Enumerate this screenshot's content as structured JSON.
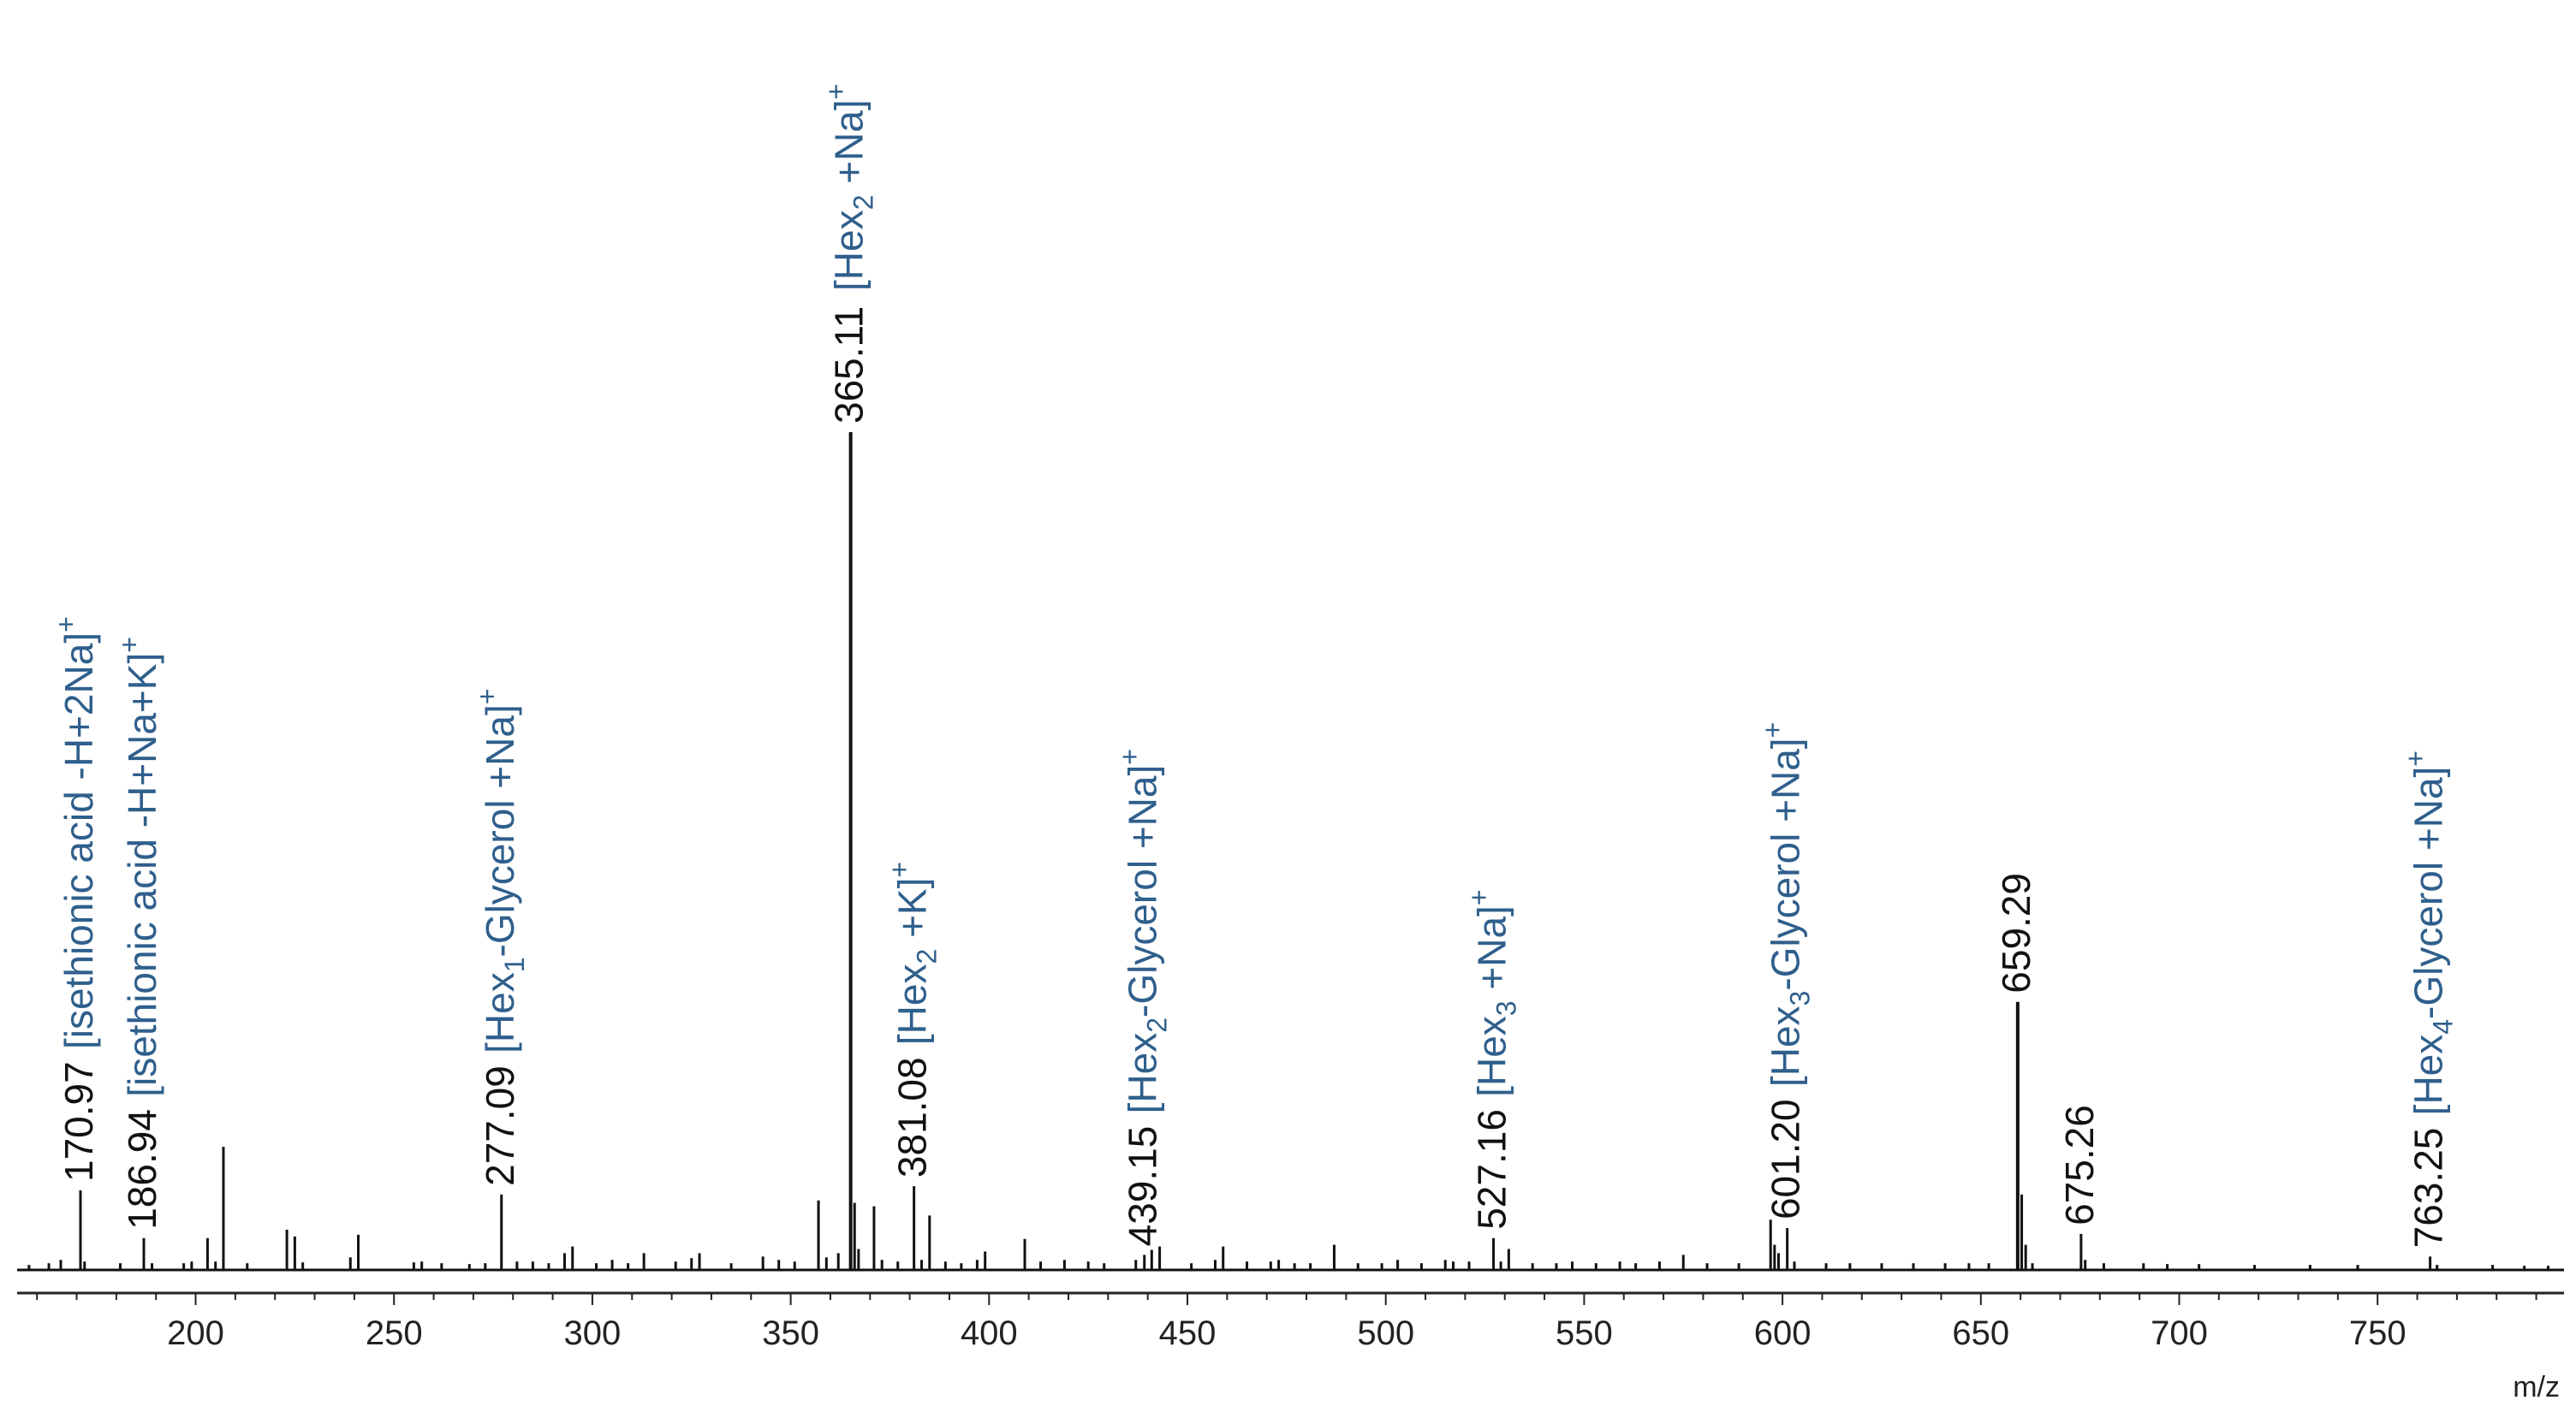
{
  "chart_data": {
    "type": "line",
    "subtype": "mass-spectrum-stick",
    "xlabel": "m/z",
    "ylabel": "",
    "xlim": [
      155,
      797
    ],
    "ylim": [
      0,
      100
    ],
    "grid": false,
    "legend": "none",
    "colors": {
      "spectrum": "#111111",
      "annotation": "#2f5f8c",
      "labels": "#111111"
    },
    "x_ticks": [
      200,
      250,
      300,
      350,
      400,
      450,
      500,
      550,
      600,
      650,
      700,
      750
    ],
    "peaks": [
      {
        "mz": 158.0,
        "intensity": 0.6
      },
      {
        "mz": 163.0,
        "intensity": 0.8
      },
      {
        "mz": 166.0,
        "intensity": 1.2
      },
      {
        "mz": 170.97,
        "intensity": 9.5
      },
      {
        "mz": 172.0,
        "intensity": 1.0
      },
      {
        "mz": 181.0,
        "intensity": 0.8
      },
      {
        "mz": 186.94,
        "intensity": 3.8
      },
      {
        "mz": 189.0,
        "intensity": 0.8
      },
      {
        "mz": 197.0,
        "intensity": 0.8
      },
      {
        "mz": 199.0,
        "intensity": 1.0
      },
      {
        "mz": 203.0,
        "intensity": 3.8
      },
      {
        "mz": 205.0,
        "intensity": 1.0
      },
      {
        "mz": 207.0,
        "intensity": 14.7
      },
      {
        "mz": 213.0,
        "intensity": 0.8
      },
      {
        "mz": 223.0,
        "intensity": 4.8
      },
      {
        "mz": 225.0,
        "intensity": 4.0
      },
      {
        "mz": 227.0,
        "intensity": 0.9
      },
      {
        "mz": 239.0,
        "intensity": 1.5
      },
      {
        "mz": 241.0,
        "intensity": 4.2
      },
      {
        "mz": 255.0,
        "intensity": 0.9
      },
      {
        "mz": 257.0,
        "intensity": 1.0
      },
      {
        "mz": 262.0,
        "intensity": 0.8
      },
      {
        "mz": 269.0,
        "intensity": 0.7
      },
      {
        "mz": 273.0,
        "intensity": 0.8
      },
      {
        "mz": 277.09,
        "intensity": 9.0
      },
      {
        "mz": 281.0,
        "intensity": 1.0
      },
      {
        "mz": 285.0,
        "intensity": 1.0
      },
      {
        "mz": 289.0,
        "intensity": 0.8
      },
      {
        "mz": 293.0,
        "intensity": 2.0
      },
      {
        "mz": 295.0,
        "intensity": 2.8
      },
      {
        "mz": 301.0,
        "intensity": 0.8
      },
      {
        "mz": 305.0,
        "intensity": 1.2
      },
      {
        "mz": 309.0,
        "intensity": 0.8
      },
      {
        "mz": 313.0,
        "intensity": 2.0
      },
      {
        "mz": 321.0,
        "intensity": 1.0
      },
      {
        "mz": 325.0,
        "intensity": 1.4
      },
      {
        "mz": 327.0,
        "intensity": 2.0
      },
      {
        "mz": 335.0,
        "intensity": 0.8
      },
      {
        "mz": 343.0,
        "intensity": 1.6
      },
      {
        "mz": 347.0,
        "intensity": 1.2
      },
      {
        "mz": 351.0,
        "intensity": 1.0
      },
      {
        "mz": 357.0,
        "intensity": 8.3
      },
      {
        "mz": 359.0,
        "intensity": 1.5
      },
      {
        "mz": 362.0,
        "intensity": 2.0
      },
      {
        "mz": 365.11,
        "intensity": 100
      },
      {
        "mz": 366.1,
        "intensity": 8.0
      },
      {
        "mz": 367.1,
        "intensity": 2.5
      },
      {
        "mz": 371.0,
        "intensity": 7.6
      },
      {
        "mz": 373.0,
        "intensity": 1.2
      },
      {
        "mz": 377.0,
        "intensity": 1.0
      },
      {
        "mz": 381.08,
        "intensity": 10.0
      },
      {
        "mz": 383.0,
        "intensity": 1.2
      },
      {
        "mz": 385.0,
        "intensity": 6.5
      },
      {
        "mz": 389.0,
        "intensity": 1.0
      },
      {
        "mz": 393.0,
        "intensity": 0.8
      },
      {
        "mz": 397.0,
        "intensity": 1.2
      },
      {
        "mz": 399.0,
        "intensity": 2.2
      },
      {
        "mz": 409.0,
        "intensity": 3.7
      },
      {
        "mz": 413.0,
        "intensity": 1.0
      },
      {
        "mz": 419.0,
        "intensity": 1.2
      },
      {
        "mz": 425.0,
        "intensity": 1.0
      },
      {
        "mz": 429.0,
        "intensity": 0.8
      },
      {
        "mz": 437.0,
        "intensity": 1.2
      },
      {
        "mz": 439.15,
        "intensity": 1.8
      },
      {
        "mz": 441.0,
        "intensity": 2.4
      },
      {
        "mz": 443.0,
        "intensity": 2.8
      },
      {
        "mz": 451.0,
        "intensity": 0.8
      },
      {
        "mz": 457.0,
        "intensity": 1.2
      },
      {
        "mz": 459.0,
        "intensity": 2.8
      },
      {
        "mz": 465.0,
        "intensity": 1.0
      },
      {
        "mz": 471.0,
        "intensity": 1.0
      },
      {
        "mz": 473.0,
        "intensity": 1.2
      },
      {
        "mz": 477.0,
        "intensity": 0.8
      },
      {
        "mz": 481.0,
        "intensity": 0.8
      },
      {
        "mz": 487.0,
        "intensity": 3.0
      },
      {
        "mz": 493.0,
        "intensity": 0.8
      },
      {
        "mz": 499.0,
        "intensity": 0.8
      },
      {
        "mz": 503.0,
        "intensity": 1.2
      },
      {
        "mz": 509.0,
        "intensity": 0.8
      },
      {
        "mz": 515.0,
        "intensity": 1.2
      },
      {
        "mz": 517.0,
        "intensity": 1.0
      },
      {
        "mz": 521.0,
        "intensity": 1.0
      },
      {
        "mz": 527.16,
        "intensity": 3.8
      },
      {
        "mz": 529.0,
        "intensity": 1.0
      },
      {
        "mz": 531.0,
        "intensity": 2.5
      },
      {
        "mz": 537.0,
        "intensity": 0.8
      },
      {
        "mz": 543.0,
        "intensity": 0.8
      },
      {
        "mz": 547.0,
        "intensity": 1.0
      },
      {
        "mz": 553.0,
        "intensity": 0.8
      },
      {
        "mz": 559.0,
        "intensity": 1.0
      },
      {
        "mz": 563.0,
        "intensity": 0.8
      },
      {
        "mz": 569.0,
        "intensity": 1.0
      },
      {
        "mz": 575.0,
        "intensity": 1.8
      },
      {
        "mz": 581.0,
        "intensity": 0.8
      },
      {
        "mz": 589.0,
        "intensity": 0.8
      },
      {
        "mz": 597.0,
        "intensity": 6.0
      },
      {
        "mz": 598.0,
        "intensity": 3.0
      },
      {
        "mz": 599.0,
        "intensity": 2.0
      },
      {
        "mz": 601.2,
        "intensity": 5.0
      },
      {
        "mz": 603.0,
        "intensity": 1.0
      },
      {
        "mz": 611.0,
        "intensity": 0.8
      },
      {
        "mz": 617.0,
        "intensity": 0.8
      },
      {
        "mz": 625.0,
        "intensity": 0.8
      },
      {
        "mz": 633.0,
        "intensity": 0.8
      },
      {
        "mz": 641.0,
        "intensity": 0.8
      },
      {
        "mz": 647.0,
        "intensity": 0.8
      },
      {
        "mz": 652.0,
        "intensity": 0.8
      },
      {
        "mz": 659.29,
        "intensity": 32.0
      },
      {
        "mz": 660.3,
        "intensity": 9.0
      },
      {
        "mz": 661.3,
        "intensity": 3.0
      },
      {
        "mz": 663.0,
        "intensity": 0.8
      },
      {
        "mz": 675.26,
        "intensity": 4.3
      },
      {
        "mz": 676.3,
        "intensity": 1.2
      },
      {
        "mz": 681.0,
        "intensity": 0.8
      },
      {
        "mz": 691.0,
        "intensity": 0.8
      },
      {
        "mz": 697.0,
        "intensity": 0.7
      },
      {
        "mz": 705.0,
        "intensity": 0.7
      },
      {
        "mz": 719.0,
        "intensity": 0.6
      },
      {
        "mz": 733.0,
        "intensity": 0.6
      },
      {
        "mz": 745.0,
        "intensity": 0.6
      },
      {
        "mz": 763.25,
        "intensity": 1.6
      },
      {
        "mz": 765.0,
        "intensity": 0.6
      },
      {
        "mz": 779.0,
        "intensity": 0.6
      },
      {
        "mz": 787.0,
        "intensity": 0.5
      },
      {
        "mz": 793.0,
        "intensity": 0.5
      }
    ],
    "peak_labels": [
      {
        "mz": 170.97,
        "intensity": 9.5,
        "text": "170.97"
      },
      {
        "mz": 186.94,
        "intensity": 3.8,
        "text": "186.94"
      },
      {
        "mz": 277.09,
        "intensity": 9.0,
        "text": "277.09"
      },
      {
        "mz": 365.11,
        "intensity": 100,
        "text": "365.11"
      },
      {
        "mz": 381.08,
        "intensity": 10.0,
        "text": "381.08"
      },
      {
        "mz": 439.15,
        "intensity": 1.8,
        "text": "439.15"
      },
      {
        "mz": 527.16,
        "intensity": 3.8,
        "text": "527.16"
      },
      {
        "mz": 601.2,
        "intensity": 5.0,
        "text": "601.20"
      },
      {
        "mz": 659.29,
        "intensity": 32.0,
        "text": "659.29"
      },
      {
        "mz": 675.26,
        "intensity": 4.3,
        "text": "675.26"
      },
      {
        "mz": 763.25,
        "intensity": 1.6,
        "text": "763.25"
      }
    ],
    "annotations": [
      {
        "mz": 170.97,
        "parts": [
          {
            "t": "[isethionic acid -H+2Na]"
          },
          {
            "t": "+",
            "s": "sup"
          }
        ]
      },
      {
        "mz": 186.94,
        "parts": [
          {
            "t": "[isethionic acid -H+Na+K]"
          },
          {
            "t": "+",
            "s": "sup"
          }
        ]
      },
      {
        "mz": 277.09,
        "parts": [
          {
            "t": "[Hex"
          },
          {
            "t": "1",
            "s": "sub"
          },
          {
            "t": "-Glycerol +Na]"
          },
          {
            "t": "+",
            "s": "sup"
          }
        ]
      },
      {
        "mz": 365.11,
        "parts": [
          {
            "t": "[Hex"
          },
          {
            "t": "2",
            "s": "sub"
          },
          {
            "t": " +Na]"
          },
          {
            "t": "+",
            "s": "sup"
          }
        ]
      },
      {
        "mz": 381.08,
        "parts": [
          {
            "t": "[Hex"
          },
          {
            "t": "2",
            "s": "sub"
          },
          {
            "t": " +K]"
          },
          {
            "t": "+",
            "s": "sup"
          }
        ]
      },
      {
        "mz": 439.15,
        "parts": [
          {
            "t": "[Hex"
          },
          {
            "t": "2",
            "s": "sub"
          },
          {
            "t": "-Glycerol +Na]"
          },
          {
            "t": "+",
            "s": "sup"
          }
        ]
      },
      {
        "mz": 527.16,
        "parts": [
          {
            "t": "[Hex"
          },
          {
            "t": "3",
            "s": "sub"
          },
          {
            "t": " +Na]"
          },
          {
            "t": "+",
            "s": "sup"
          }
        ]
      },
      {
        "mz": 601.2,
        "parts": [
          {
            "t": "[Hex"
          },
          {
            "t": "3",
            "s": "sub"
          },
          {
            "t": "-Glycerol +Na]"
          },
          {
            "t": "+",
            "s": "sup"
          }
        ]
      },
      {
        "mz": 763.25,
        "parts": [
          {
            "t": "[Hex"
          },
          {
            "t": "4",
            "s": "sub"
          },
          {
            "t": "-Glycerol +Na]"
          },
          {
            "t": "+",
            "s": "sup"
          }
        ]
      }
    ]
  }
}
